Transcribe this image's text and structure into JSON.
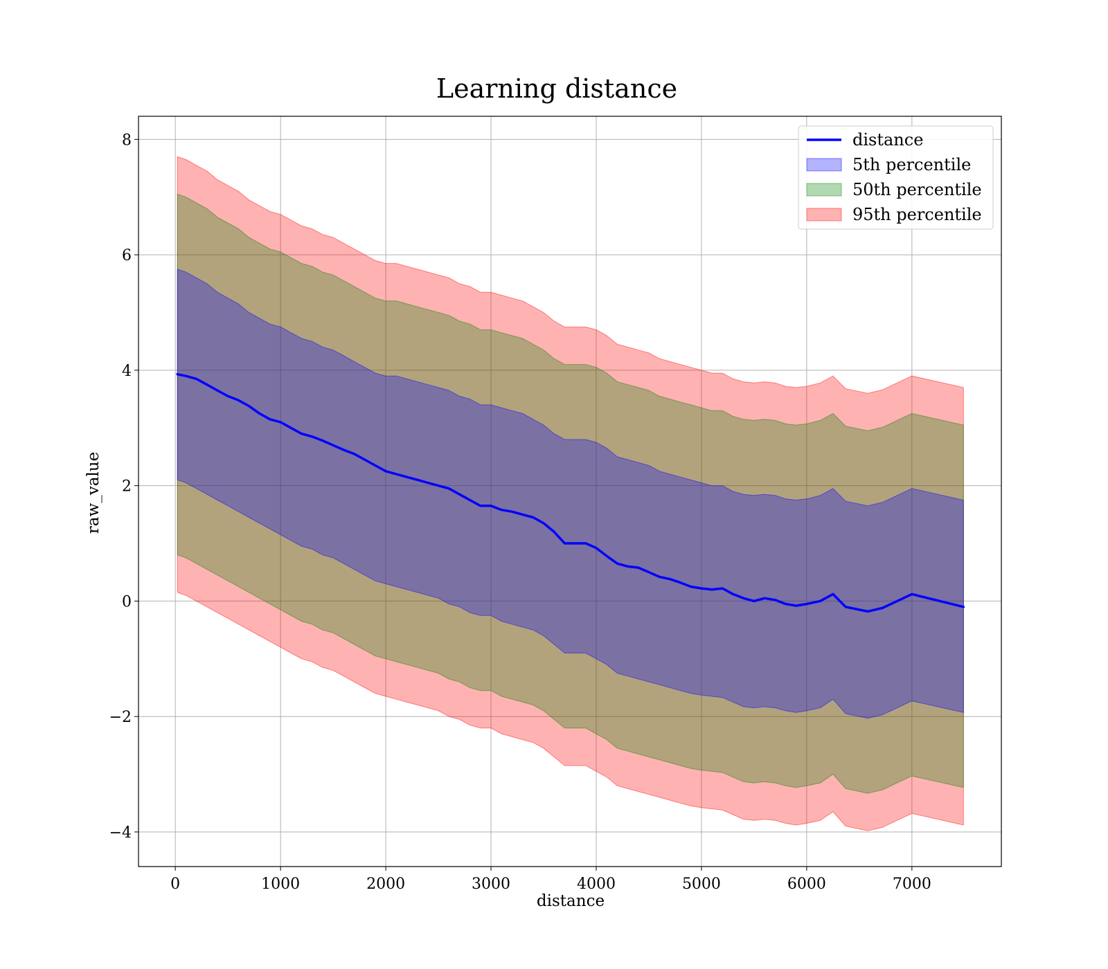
{
  "chart_data": {
    "type": "area",
    "title": "Learning distance",
    "xlabel": "distance",
    "ylabel": "raw_value",
    "xlim": [
      -350,
      7850
    ],
    "ylim": [
      -4.6,
      8.4
    ],
    "xticks": [
      0,
      1000,
      2000,
      3000,
      4000,
      5000,
      6000,
      7000
    ],
    "xtick_labels": [
      "0",
      "1000",
      "2000",
      "3000",
      "4000",
      "5000",
      "6000",
      "7000"
    ],
    "yticks": [
      -4,
      -2,
      0,
      2,
      4,
      6,
      8
    ],
    "ytick_labels": [
      "−4",
      "−2",
      "0",
      "2",
      "4",
      "6",
      "8"
    ],
    "grid": true,
    "legend_position": "top-right",
    "legend": [
      {
        "label": "distance",
        "kind": "line",
        "color": "#0000ff"
      },
      {
        "label": "5th percentile",
        "kind": "patch",
        "color": "#0000ff"
      },
      {
        "label": "50th percentile",
        "kind": "patch",
        "color": "#008000"
      },
      {
        "label": "95th percentile",
        "kind": "patch",
        "color": "#ff0000"
      }
    ],
    "x": [
      20,
      100,
      200,
      300,
      400,
      500,
      600,
      700,
      800,
      900,
      1000,
      1100,
      1200,
      1300,
      1400,
      1500,
      1600,
      1700,
      1800,
      1900,
      2000,
      2100,
      2200,
      2300,
      2400,
      2500,
      2600,
      2700,
      2800,
      2900,
      3000,
      3100,
      3200,
      3300,
      3400,
      3500,
      3600,
      3700,
      3800,
      3900,
      4000,
      4100,
      4200,
      4300,
      4400,
      4500,
      4600,
      4700,
      4800,
      4900,
      5000,
      5100,
      5200,
      5300,
      5400,
      5500,
      5600,
      5700,
      5800,
      5900,
      6000,
      6130,
      6250,
      6370,
      6580,
      6720,
      7000,
      7490
    ],
    "series": [
      {
        "name": "distance",
        "color": "#0000ff",
        "values": [
          3.93,
          3.9,
          3.85,
          3.75,
          3.65,
          3.55,
          3.48,
          3.38,
          3.25,
          3.15,
          3.1,
          3.0,
          2.9,
          2.85,
          2.78,
          2.7,
          2.62,
          2.55,
          2.45,
          2.35,
          2.25,
          2.2,
          2.15,
          2.1,
          2.05,
          2.0,
          1.95,
          1.85,
          1.75,
          1.65,
          1.65,
          1.58,
          1.55,
          1.5,
          1.45,
          1.35,
          1.2,
          1.0,
          1.0,
          1.0,
          0.92,
          0.78,
          0.65,
          0.6,
          0.58,
          0.5,
          0.42,
          0.38,
          0.32,
          0.25,
          0.22,
          0.2,
          0.22,
          0.12,
          0.05,
          0.0,
          0.05,
          0.02,
          -0.05,
          -0.08,
          -0.05,
          0.0,
          0.12,
          -0.1,
          -0.18,
          -0.12,
          0.12,
          -0.1
        ]
      }
    ],
    "bands": [
      {
        "label": "95th percentile",
        "color": "#ff0000",
        "opacity": 0.3,
        "upper": [
          7.7,
          7.65,
          7.55,
          7.45,
          7.3,
          7.2,
          7.1,
          6.95,
          6.85,
          6.75,
          6.7,
          6.6,
          6.5,
          6.45,
          6.35,
          6.3,
          6.2,
          6.1,
          6.0,
          5.9,
          5.85,
          5.85,
          5.8,
          5.75,
          5.7,
          5.65,
          5.6,
          5.5,
          5.45,
          5.35,
          5.35,
          5.3,
          5.25,
          5.2,
          5.1,
          5.0,
          4.85,
          4.75,
          4.75,
          4.75,
          4.7,
          4.6,
          4.45,
          4.4,
          4.35,
          4.3,
          4.2,
          4.15,
          4.1,
          4.05,
          4.0,
          3.95,
          3.95,
          3.85,
          3.8,
          3.78,
          3.8,
          3.78,
          3.72,
          3.7,
          3.72,
          3.78,
          3.9,
          3.68,
          3.6,
          3.66,
          3.9,
          3.7
        ],
        "lower": [
          0.15,
          0.1,
          0.0,
          -0.1,
          -0.2,
          -0.3,
          -0.4,
          -0.5,
          -0.6,
          -0.7,
          -0.8,
          -0.9,
          -1.0,
          -1.05,
          -1.15,
          -1.2,
          -1.3,
          -1.4,
          -1.5,
          -1.6,
          -1.65,
          -1.7,
          -1.75,
          -1.8,
          -1.85,
          -1.9,
          -2.0,
          -2.05,
          -2.15,
          -2.2,
          -2.2,
          -2.3,
          -2.35,
          -2.4,
          -2.45,
          -2.55,
          -2.7,
          -2.85,
          -2.85,
          -2.85,
          -2.95,
          -3.05,
          -3.2,
          -3.25,
          -3.3,
          -3.35,
          -3.4,
          -3.45,
          -3.5,
          -3.55,
          -3.58,
          -3.6,
          -3.62,
          -3.7,
          -3.78,
          -3.8,
          -3.78,
          -3.8,
          -3.85,
          -3.88,
          -3.85,
          -3.8,
          -3.65,
          -3.9,
          -3.98,
          -3.92,
          -3.68,
          -3.88
        ]
      },
      {
        "label": "50th percentile",
        "color": "#008000",
        "opacity": 0.3,
        "upper": [
          7.05,
          7.0,
          6.9,
          6.8,
          6.65,
          6.55,
          6.45,
          6.3,
          6.2,
          6.1,
          6.05,
          5.95,
          5.85,
          5.8,
          5.7,
          5.65,
          5.55,
          5.45,
          5.35,
          5.25,
          5.2,
          5.2,
          5.15,
          5.1,
          5.05,
          5.0,
          4.95,
          4.85,
          4.8,
          4.7,
          4.7,
          4.65,
          4.6,
          4.55,
          4.45,
          4.35,
          4.2,
          4.1,
          4.1,
          4.1,
          4.05,
          3.95,
          3.8,
          3.75,
          3.7,
          3.65,
          3.55,
          3.5,
          3.45,
          3.4,
          3.35,
          3.3,
          3.3,
          3.2,
          3.15,
          3.13,
          3.15,
          3.13,
          3.07,
          3.05,
          3.07,
          3.13,
          3.25,
          3.03,
          2.95,
          3.01,
          3.25,
          3.05
        ],
        "lower": [
          0.8,
          0.75,
          0.65,
          0.55,
          0.45,
          0.35,
          0.25,
          0.15,
          0.05,
          -0.05,
          -0.15,
          -0.25,
          -0.35,
          -0.4,
          -0.5,
          -0.55,
          -0.65,
          -0.75,
          -0.85,
          -0.95,
          -1.0,
          -1.05,
          -1.1,
          -1.15,
          -1.2,
          -1.25,
          -1.35,
          -1.4,
          -1.5,
          -1.55,
          -1.55,
          -1.65,
          -1.7,
          -1.75,
          -1.8,
          -1.9,
          -2.05,
          -2.2,
          -2.2,
          -2.2,
          -2.3,
          -2.4,
          -2.55,
          -2.6,
          -2.65,
          -2.7,
          -2.75,
          -2.8,
          -2.85,
          -2.9,
          -2.93,
          -2.95,
          -2.97,
          -3.05,
          -3.13,
          -3.15,
          -3.13,
          -3.15,
          -3.2,
          -3.23,
          -3.2,
          -3.15,
          -3.0,
          -3.25,
          -3.33,
          -3.27,
          -3.03,
          -3.23
        ]
      },
      {
        "label": "5th percentile",
        "color": "#0000ff",
        "opacity": 0.3,
        "upper": [
          5.75,
          5.7,
          5.6,
          5.5,
          5.35,
          5.25,
          5.15,
          5.0,
          4.9,
          4.8,
          4.75,
          4.65,
          4.55,
          4.5,
          4.4,
          4.35,
          4.25,
          4.15,
          4.05,
          3.95,
          3.9,
          3.9,
          3.85,
          3.8,
          3.75,
          3.7,
          3.65,
          3.55,
          3.5,
          3.4,
          3.4,
          3.35,
          3.3,
          3.25,
          3.15,
          3.05,
          2.9,
          2.8,
          2.8,
          2.8,
          2.75,
          2.65,
          2.5,
          2.45,
          2.4,
          2.35,
          2.25,
          2.2,
          2.15,
          2.1,
          2.05,
          2.0,
          2.0,
          1.9,
          1.85,
          1.83,
          1.85,
          1.83,
          1.77,
          1.75,
          1.77,
          1.83,
          1.95,
          1.73,
          1.65,
          1.71,
          1.95,
          1.75
        ],
        "lower": [
          2.1,
          2.05,
          1.95,
          1.85,
          1.75,
          1.65,
          1.55,
          1.45,
          1.35,
          1.25,
          1.15,
          1.05,
          0.95,
          0.9,
          0.8,
          0.75,
          0.65,
          0.55,
          0.45,
          0.35,
          0.3,
          0.25,
          0.2,
          0.15,
          0.1,
          0.05,
          -0.05,
          -0.1,
          -0.2,
          -0.25,
          -0.25,
          -0.35,
          -0.4,
          -0.45,
          -0.5,
          -0.6,
          -0.75,
          -0.9,
          -0.9,
          -0.9,
          -1.0,
          -1.1,
          -1.25,
          -1.3,
          -1.35,
          -1.4,
          -1.45,
          -1.5,
          -1.55,
          -1.6,
          -1.63,
          -1.65,
          -1.67,
          -1.75,
          -1.83,
          -1.85,
          -1.83,
          -1.85,
          -1.9,
          -1.93,
          -1.9,
          -1.85,
          -1.7,
          -1.95,
          -2.03,
          -1.97,
          -1.73,
          -1.93
        ]
      }
    ]
  }
}
